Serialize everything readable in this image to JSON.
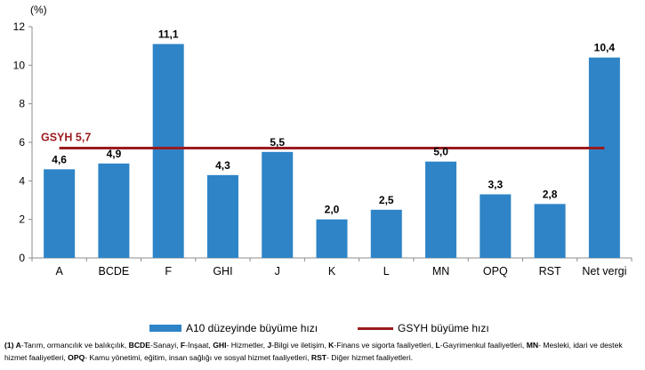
{
  "chart_data": {
    "type": "bar",
    "unit_label": "(%)",
    "categories": [
      "A",
      "BCDE",
      "F",
      "GHI",
      "J",
      "K",
      "L",
      "MN",
      "OPQ",
      "RST",
      "Net vergi"
    ],
    "series": [
      {
        "name": "A10 düzeyinde büyüme hızı",
        "values": [
          4.6,
          4.9,
          11.1,
          4.3,
          5.5,
          2.0,
          2.5,
          5.0,
          3.3,
          2.8,
          10.4
        ],
        "labels": [
          "4,6",
          "4,9",
          "11,1",
          "4,3",
          "5,5",
          "2,0",
          "2,5",
          "5,0",
          "3,3",
          "2,8",
          "10,4"
        ],
        "color": "#2e84c6"
      }
    ],
    "reference_line": {
      "name": "GSYH büyüme hızı",
      "value": 5.7,
      "label": "GSYH 5,7",
      "color": "#9b1b1f"
    },
    "y_ticks": [
      "0",
      "2",
      "4",
      "6",
      "8",
      "10",
      "12"
    ],
    "ylim": [
      0,
      12
    ],
    "grid": false,
    "legend_position": "bottom"
  },
  "legend": {
    "bar_label": "A10 düzeyinde büyüme hızı",
    "line_label": "GSYH büyüme hızı"
  },
  "footnote": {
    "segments": [
      {
        "t": "(1) ",
        "b": true
      },
      {
        "t": "A",
        "b": true
      },
      {
        "t": "-Tarım, ormancılık ve balıkçılık, ",
        "b": false
      },
      {
        "t": "BCDE",
        "b": true
      },
      {
        "t": "-Sanayi, ",
        "b": false
      },
      {
        "t": "F",
        "b": true
      },
      {
        "t": "-İnşaat, ",
        "b": false
      },
      {
        "t": "GHI",
        "b": true
      },
      {
        "t": "- Hizmetler, ",
        "b": false
      },
      {
        "t": "J",
        "b": true
      },
      {
        "t": "-Bilgi ve iletişim, ",
        "b": false
      },
      {
        "t": "K",
        "b": true
      },
      {
        "t": "-Finans ve sigorta faaliyetleri, ",
        "b": false
      },
      {
        "t": "L",
        "b": true
      },
      {
        "t": "-Gayrimenkul faaliyetleri, ",
        "b": false
      },
      {
        "t": "MN",
        "b": true
      },
      {
        "t": "- Mesleki, idari ve destek hizmet faaliyetleri, ",
        "b": false
      },
      {
        "t": "OPQ",
        "b": true
      },
      {
        "t": "- Kamu yönetimi, eğitim, insan sağlığı ve sosyal hizmet faaliyetleri, ",
        "b": false
      },
      {
        "t": "RST",
        "b": true
      },
      {
        "t": "- Diğer hizmet faaliyetleri.",
        "b": false
      }
    ]
  }
}
